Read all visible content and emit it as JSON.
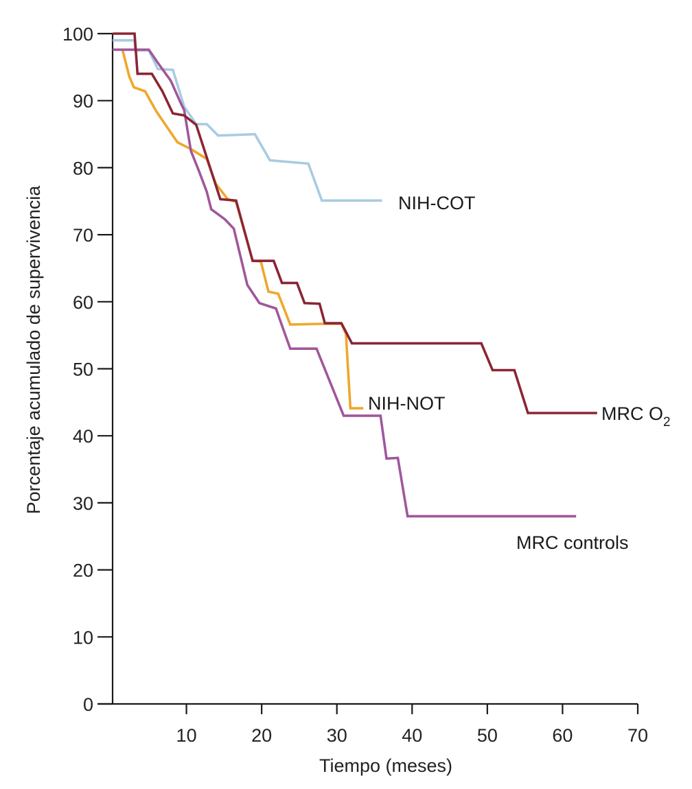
{
  "chart_data": {
    "type": "line",
    "title": "",
    "xlabel": "Tiempo (meses)",
    "ylabel": "Porcentaje acumulado de supervivencia",
    "xlim": [
      0,
      70
    ],
    "ylim": [
      0,
      100
    ],
    "xticks": [
      10,
      20,
      30,
      40,
      50,
      60,
      70
    ],
    "yticks": [
      0,
      10,
      20,
      30,
      40,
      50,
      60,
      70,
      80,
      90,
      100
    ],
    "grid": false,
    "legend": "inline labels at series ends",
    "series": [
      {
        "name": "NIH-COT",
        "label": "NIH-COT",
        "color": "#A9CBE2",
        "x": [
          0.2,
          3.1,
          3.2,
          5.0,
          6.2,
          8.2,
          9.7,
          11.3,
          12.7,
          14.2,
          17.0,
          19.1,
          21.1,
          26.2,
          28.0,
          36.0
        ],
        "y": [
          99.0,
          99.0,
          97.5,
          97.5,
          94.7,
          94.6,
          89.1,
          86.5,
          86.5,
          84.8,
          84.9,
          85.0,
          81.1,
          80.6,
          75.1,
          75.1
        ]
      },
      {
        "name": "MRC O2",
        "label": "MRC O",
        "label_sub": "2",
        "color": "#8B2535",
        "x": [
          0.2,
          3.1,
          3.5,
          5.4,
          6.8,
          8.2,
          9.7,
          11.3,
          14.5,
          16.6,
          18.8,
          21.6,
          22.7,
          24.7,
          25.7,
          27.7,
          28.4,
          30.6,
          32.0,
          49.2,
          50.7,
          53.6,
          55.4,
          64.6
        ],
        "y": [
          100,
          100,
          94.0,
          94.0,
          91.4,
          88.1,
          87.8,
          86.4,
          75.3,
          75.1,
          66.1,
          66.1,
          62.8,
          62.8,
          59.8,
          59.7,
          56.8,
          56.8,
          53.8,
          53.8,
          49.8,
          49.8,
          43.4,
          43.4
        ]
      },
      {
        "name": "NIH-NOT",
        "label": "NIH-NOT",
        "color": "#EFA72D",
        "x": [
          1.5,
          2.4,
          3.0,
          4.5,
          6.0,
          8.8,
          10.7,
          12.7,
          13.9,
          15.5,
          16.6,
          18.8,
          19.9,
          20.9,
          22.2,
          23.8,
          28.0,
          30.6,
          31.2,
          31.8,
          33.5
        ],
        "y": [
          97.6,
          93.6,
          92.0,
          91.4,
          88.4,
          83.8,
          82.7,
          81.3,
          77.6,
          75.3,
          74.9,
          66.1,
          66.0,
          61.5,
          61.2,
          56.6,
          56.7,
          56.7,
          55.2,
          44.1,
          44.1
        ]
      },
      {
        "name": "MRC controls",
        "label": "MRC controls",
        "color": "#A0579B",
        "x": [
          0.2,
          5.0,
          6.1,
          7.9,
          9.3,
          9.7,
          10.6,
          11.7,
          12.7,
          13.3,
          15.1,
          16.3,
          18.1,
          19.7,
          21.9,
          22.4,
          23.8,
          27.3,
          30.9,
          35.8,
          36.6,
          38.1,
          39.4,
          61.8
        ],
        "y": [
          97.6,
          97.6,
          95.8,
          93.0,
          89.5,
          88.6,
          82.5,
          79.4,
          76.4,
          73.8,
          72.3,
          70.9,
          62.5,
          59.8,
          59.0,
          57.4,
          53.0,
          53.0,
          43.0,
          43.0,
          36.6,
          36.7,
          28.0,
          28.0
        ]
      }
    ]
  }
}
